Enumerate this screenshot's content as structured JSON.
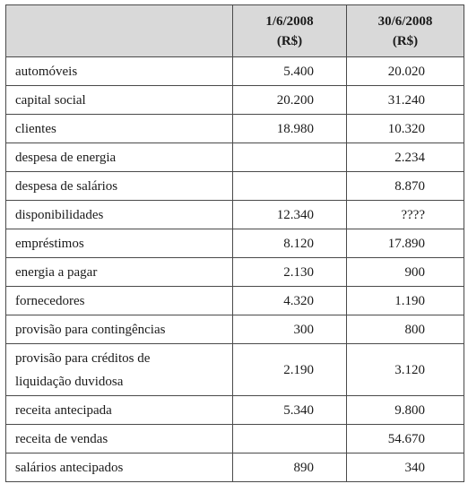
{
  "header": {
    "col_a_date": "1/6/2008",
    "col_a_unit": "(R$)",
    "col_b_date": "30/6/2008",
    "col_b_unit": "(R$)"
  },
  "rows": [
    {
      "name": "automóveis",
      "a": "5.400",
      "b": "20.020"
    },
    {
      "name": "capital social",
      "a": "20.200",
      "b": "31.240"
    },
    {
      "name": "clientes",
      "a": "18.980",
      "b": "10.320"
    },
    {
      "name": "despesa de energia",
      "a": "",
      "b": "2.234"
    },
    {
      "name": "despesa de salários",
      "a": "",
      "b": "8.870"
    },
    {
      "name": "disponibilidades",
      "a": "12.340",
      "b": "????"
    },
    {
      "name": "empréstimos",
      "a": "8.120",
      "b": "17.890"
    },
    {
      "name": "energia a pagar",
      "a": "2.130",
      "b": "900"
    },
    {
      "name": "fornecedores",
      "a": "4.320",
      "b": "1.190"
    },
    {
      "name": "provisão para contingências",
      "a": "300",
      "b": "800"
    },
    {
      "name_line1": "provisão para créditos de",
      "name_line2": "liquidação duvidosa",
      "a": "2.190",
      "b": "3.120"
    },
    {
      "name": "receita antecipada",
      "a": "5.340",
      "b": "9.800"
    },
    {
      "name": "receita de vendas",
      "a": "",
      "b": "54.670"
    },
    {
      "name": "salários antecipados",
      "a": "890",
      "b": "340"
    }
  ]
}
